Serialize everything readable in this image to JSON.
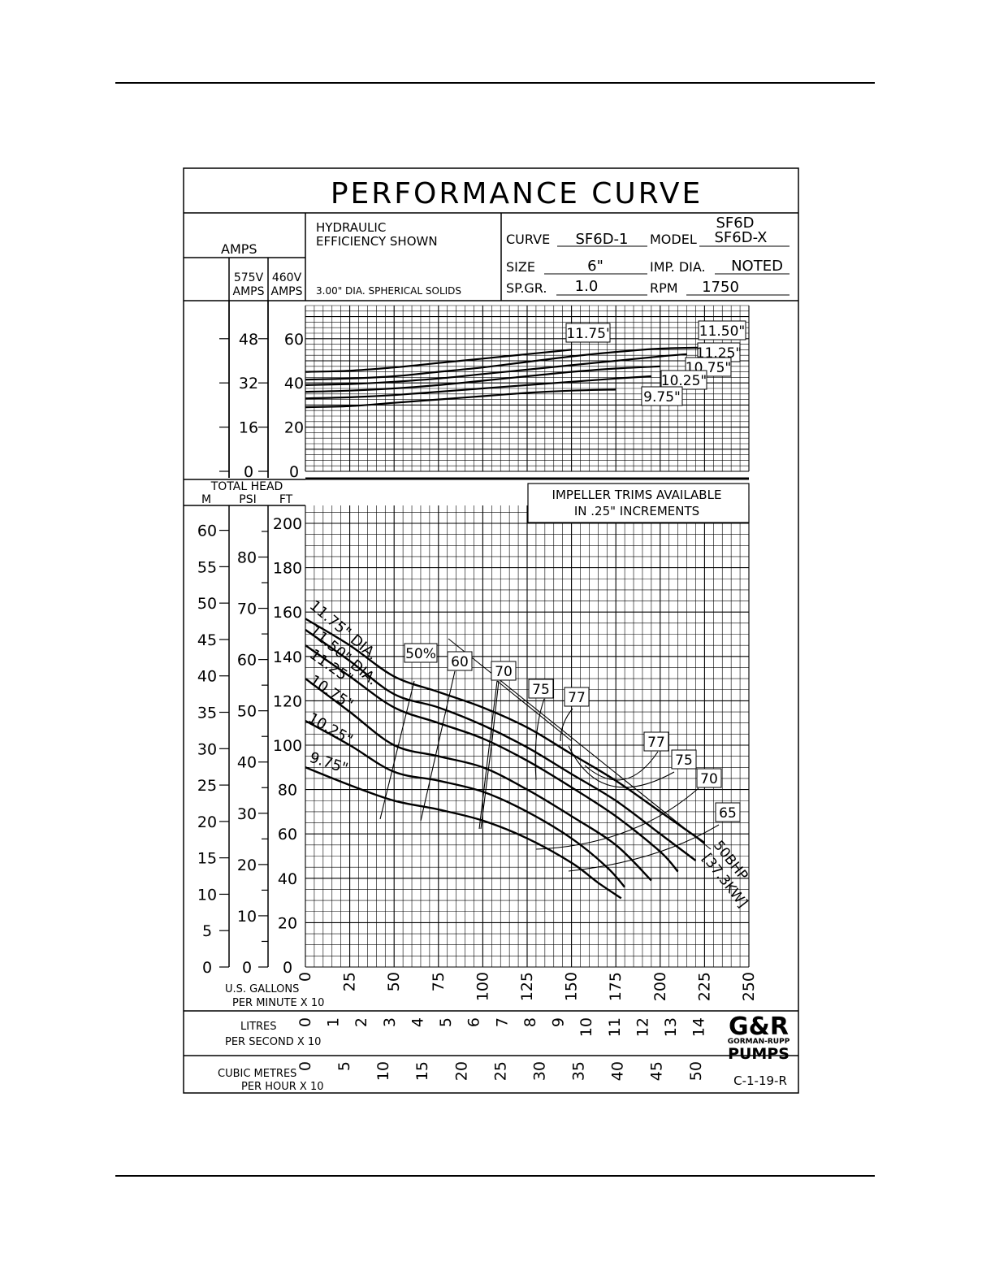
{
  "chart_data": {
    "type": "line",
    "title": "PERFORMANCE CURVE",
    "header": {
      "amps_label": "AMPS",
      "hydraulic_line1": "HYDRAULIC",
      "hydraulic_line2": "EFFICIENCY SHOWN",
      "solids_note": "3.00\" DIA. SPHERICAL SOLIDS",
      "curve_label": "CURVE",
      "curve_value": "SF6D-1",
      "model_label": "MODEL",
      "model_value_line1": "SF6D",
      "model_value_line2": "SF6D-X",
      "size_label": "SIZE",
      "size_value": "6\"",
      "imp_dia_label": "IMP. DIA.",
      "imp_dia_value": "NOTED",
      "sp_gr_label": "SP.GR.",
      "sp_gr_value": "1.0",
      "rpm_label": "RPM",
      "rpm_value": "1750"
    },
    "amps_axes": {
      "col575_label_line1": "575V",
      "col575_label_line2": "AMPS",
      "col460_label_line1": "460V",
      "col460_label_line2": "AMPS",
      "ticks_575": [
        "48",
        "32",
        "16",
        "0"
      ],
      "ticks_460": [
        "60",
        "40",
        "20",
        "0"
      ],
      "ylim_460": [
        0,
        75
      ]
    },
    "head_axes": {
      "total_head_label": "TOTAL HEAD",
      "m_label": "M",
      "psi_label": "PSI",
      "ft_label": "FT",
      "ticks_m": [
        "60",
        "55",
        "50",
        "45",
        "40",
        "35",
        "30",
        "25",
        "20",
        "15",
        "10",
        "5",
        "0"
      ],
      "ticks_psi": [
        "80",
        "70",
        "60",
        "50",
        "40",
        "30",
        "20",
        "10",
        "0"
      ],
      "ticks_ft": [
        "200",
        "180",
        "160",
        "140",
        "120",
        "100",
        "80",
        "60",
        "40",
        "20",
        "0"
      ],
      "ylim_ft": [
        0,
        200
      ]
    },
    "x_axes": {
      "gpm_label_line1": "U.S. GALLONS",
      "gpm_label_line2": "PER MINUTE X 10",
      "gpm_ticks": [
        "0",
        "25",
        "50",
        "75",
        "100",
        "125",
        "150",
        "175",
        "200",
        "225",
        "250"
      ],
      "lps_label_line1": "LITRES",
      "lps_label_line2": "PER SECOND X 10",
      "lps_ticks": [
        "0",
        "1",
        "2",
        "3",
        "4",
        "5",
        "6",
        "7",
        "8",
        "9",
        "10",
        "11",
        "12",
        "13",
        "14"
      ],
      "cmh_label_line1": "CUBIC METRES",
      "cmh_label_line2": "PER HOUR X 10",
      "cmh_ticks": [
        "0",
        "5",
        "10",
        "15",
        "20",
        "25",
        "30",
        "35",
        "40",
        "45",
        "50"
      ],
      "xlim": [
        0,
        250
      ]
    },
    "note_line1": "IMPELLER TRIMS AVAILABLE",
    "note_line2": "IN .25\" INCREMENTS",
    "drawing_number": "C-1-19-R",
    "brand_line1": "GORMAN-RUPP",
    "brand_line2": "PUMPS",
    "head_series": [
      {
        "name": "11.75\" DIA.",
        "x": [
          0,
          25,
          50,
          75,
          100,
          125,
          150,
          175,
          200,
          225
        ],
        "y": [
          157,
          145,
          131,
          124,
          117,
          108,
          96,
          84,
          70,
          56
        ]
      },
      {
        "name": "11.50\" DIA.",
        "x": [
          0,
          25,
          50,
          75,
          100,
          125,
          150,
          175,
          200,
          220
        ],
        "y": [
          152,
          138,
          123,
          117,
          109,
          99,
          87,
          75,
          60,
          48
        ]
      },
      {
        "name": "11.25\"",
        "x": [
          0,
          25,
          50,
          75,
          100,
          125,
          150,
          175,
          200,
          210
        ],
        "y": [
          145,
          131,
          117,
          110,
          103,
          93,
          81,
          68,
          52,
          43
        ]
      },
      {
        "name": "10.75\"",
        "x": [
          0,
          25,
          50,
          75,
          100,
          125,
          150,
          175,
          195
        ],
        "y": [
          130,
          115,
          100,
          95,
          90,
          80,
          68,
          55,
          39
        ]
      },
      {
        "name": "10.25\"",
        "x": [
          0,
          25,
          50,
          75,
          100,
          125,
          150,
          170,
          180
        ],
        "y": [
          111,
          100,
          88,
          84,
          79,
          70,
          58,
          45,
          36
        ]
      },
      {
        "name": "9.75\"",
        "x": [
          0,
          25,
          50,
          75,
          100,
          125,
          150,
          165,
          178
        ],
        "y": [
          90,
          82,
          75,
          71,
          66,
          58,
          47,
          38,
          31
        ]
      }
    ],
    "amps_series": [
      {
        "name": "11.75'",
        "x": [
          0,
          25,
          50,
          75,
          100,
          125,
          150
        ],
        "y": [
          45,
          45.5,
          47,
          49,
          51,
          53,
          55
        ]
      },
      {
        "name": "11.50\"",
        "x": [
          0,
          25,
          50,
          75,
          100,
          125,
          150,
          175,
          200,
          225
        ],
        "y": [
          41.5,
          42,
          43,
          45,
          47,
          49.5,
          52,
          54,
          55.5,
          56
        ]
      },
      {
        "name": "11.25\"",
        "x": [
          0,
          25,
          50,
          75,
          100,
          125,
          150,
          175,
          200,
          215
        ],
        "y": [
          39,
          39.5,
          40.5,
          42,
          44,
          46,
          48,
          50,
          52,
          53
        ]
      },
      {
        "name": "10.75\"",
        "x": [
          0,
          25,
          50,
          75,
          100,
          125,
          150,
          175,
          200
        ],
        "y": [
          36,
          36.5,
          37.5,
          39,
          41,
          43,
          45,
          46.5,
          47.5
        ]
      },
      {
        "name": "10.25\"",
        "x": [
          0,
          25,
          50,
          75,
          100,
          125,
          150,
          175,
          195
        ],
        "y": [
          33,
          33.5,
          34.5,
          36,
          37.5,
          39,
          40.5,
          42,
          43
        ]
      },
      {
        "name": "9.75\"",
        "x": [
          0,
          25,
          50,
          75,
          100,
          125,
          150,
          175
        ],
        "y": [
          29,
          29.5,
          31,
          32.5,
          34,
          35.5,
          36.5,
          37
        ]
      }
    ],
    "efficiency_labels": [
      "50%",
      "60",
      "70",
      "75",
      "77",
      "77",
      "75",
      "70",
      "65"
    ],
    "hp_label_line1": "50BHP",
    "hp_label_line2": "[37.3KW]",
    "grid": true
  }
}
